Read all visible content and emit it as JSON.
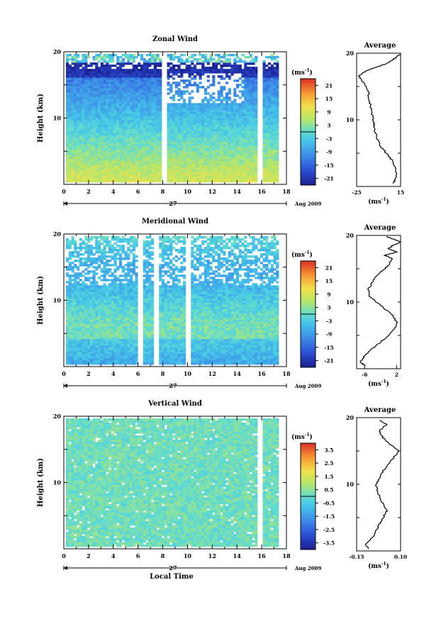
{
  "chart_data": [
    {
      "type": "heatmap",
      "title": "Zonal Wind",
      "ylabel": "Height (km)",
      "xlim": [
        0,
        18
      ],
      "ylim": [
        0,
        20
      ],
      "x_ticks": [
        "0",
        "2",
        "4",
        "6",
        "8",
        "10",
        "12",
        "14",
        "16",
        "18"
      ],
      "y_ticks": [
        "10",
        "20"
      ],
      "date_label": "27",
      "date_suffix": "Aug 2009",
      "colorbar": {
        "unit": "(ms",
        "unit_sup": "-1",
        "unit_close": ")",
        "ticks": [
          "21",
          "15",
          "9",
          "3",
          "-3",
          "-9",
          "-15",
          "-21"
        ],
        "range": [
          -24,
          24
        ]
      },
      "avg": {
        "title": "Average",
        "xlim": [
          -25,
          15
        ],
        "x_ticks": [
          "-25",
          "15"
        ],
        "xlabel": "(ms",
        "xlabel_sup": "-1",
        "xlabel_close": ")",
        "y_ticks": [
          "10",
          "20"
        ],
        "profile": [
          [
            8,
            0.5
          ],
          [
            10,
            1
          ],
          [
            11,
            2
          ],
          [
            10,
            3
          ],
          [
            7,
            4
          ],
          [
            2,
            5
          ],
          [
            -3,
            6
          ],
          [
            -6,
            7
          ],
          [
            -8,
            8
          ],
          [
            -9,
            9
          ],
          [
            -10,
            10
          ],
          [
            -11,
            11
          ],
          [
            -12,
            12
          ],
          [
            -14,
            13
          ],
          [
            -14,
            14
          ],
          [
            -16,
            15
          ],
          [
            -20,
            15.8
          ],
          [
            -23,
            16.5
          ],
          [
            -20,
            17
          ],
          [
            -14,
            17.5
          ],
          [
            -5,
            18
          ],
          [
            3,
            18.5
          ],
          [
            8,
            19
          ],
          [
            12,
            19.5
          ],
          [
            15,
            19.9
          ]
        ]
      }
    },
    {
      "type": "heatmap",
      "title": "Meridional Wind",
      "ylabel": "Height (km)",
      "xlim": [
        0,
        18
      ],
      "ylim": [
        0,
        20
      ],
      "x_ticks": [
        "0",
        "2",
        "4",
        "6",
        "8",
        "10",
        "12",
        "14",
        "16",
        "18"
      ],
      "y_ticks": [
        "10",
        "20"
      ],
      "date_label": "27",
      "date_suffix": "Aug 2009",
      "colorbar": {
        "unit": "(ms",
        "unit_sup": "-1",
        "unit_close": ")",
        "ticks": [
          "21",
          "15",
          "9",
          "3",
          "-3",
          "-9",
          "-15",
          "-21"
        ],
        "range": [
          -24,
          24
        ]
      },
      "avg": {
        "title": "Average",
        "xlim": [
          -8,
          3
        ],
        "x_ticks": [
          "-6",
          "2"
        ],
        "xlabel": "(ms",
        "xlabel_sup": "-1",
        "xlabel_close": ")",
        "y_ticks": [
          "10",
          "20"
        ],
        "profile": [
          [
            -6,
            0.5
          ],
          [
            -7,
            1
          ],
          [
            -6,
            2
          ],
          [
            -4,
            3
          ],
          [
            -2,
            4
          ],
          [
            0,
            5
          ],
          [
            1.5,
            6
          ],
          [
            2,
            7
          ],
          [
            1,
            8
          ],
          [
            -1,
            9
          ],
          [
            -3,
            10
          ],
          [
            -5,
            11
          ],
          [
            -5,
            12
          ],
          [
            -4,
            13
          ],
          [
            -3,
            14
          ],
          [
            -1,
            15
          ],
          [
            0,
            15.5
          ],
          [
            1,
            16.5
          ],
          [
            -1,
            17
          ],
          [
            2,
            17.5
          ],
          [
            0,
            18
          ],
          [
            1,
            18.5
          ],
          [
            3,
            19
          ],
          [
            1,
            19.5
          ],
          [
            -1,
            19.9
          ]
        ]
      }
    },
    {
      "type": "heatmap",
      "title": "Vertical Wind",
      "ylabel": "Height (km)",
      "xlabel": "Local Time",
      "xlim": [
        0,
        18
      ],
      "ylim": [
        0,
        20
      ],
      "x_ticks": [
        "0",
        "2",
        "4",
        "6",
        "8",
        "10",
        "12",
        "14",
        "16",
        "18"
      ],
      "y_ticks": [
        "10",
        "20"
      ],
      "date_label": "27",
      "date_suffix": "Aug 2009",
      "colorbar": {
        "unit": "(ms",
        "unit_sup": "-1",
        "unit_close": ")",
        "ticks": [
          "3.5",
          "2.5",
          "1.5",
          "0.5",
          "-0.5",
          "-1.5",
          "-2.5",
          "-3.5"
        ],
        "range": [
          -4,
          4
        ]
      },
      "avg": {
        "title": "Average",
        "xlim": [
          -0.15,
          0.1
        ],
        "x_ticks": [
          "-0.15",
          "0.10"
        ],
        "xlabel": "(ms",
        "xlabel_sup": "-1",
        "xlabel_close": ")",
        "y_ticks": [
          "10",
          "20"
        ],
        "profile": [
          [
            -0.08,
            0.3
          ],
          [
            -0.1,
            1
          ],
          [
            -0.06,
            2
          ],
          [
            -0.04,
            3
          ],
          [
            -0.02,
            4
          ],
          [
            0.0,
            5
          ],
          [
            0.02,
            6
          ],
          [
            0.0,
            7
          ],
          [
            -0.02,
            8
          ],
          [
            -0.03,
            9
          ],
          [
            -0.04,
            10
          ],
          [
            -0.02,
            11
          ],
          [
            0.0,
            12
          ],
          [
            0.03,
            13
          ],
          [
            0.06,
            14
          ],
          [
            0.09,
            15
          ],
          [
            0.04,
            16
          ],
          [
            0.0,
            17
          ],
          [
            -0.02,
            18
          ],
          [
            0.02,
            19
          ],
          [
            -0.03,
            19.8
          ]
        ]
      }
    }
  ]
}
